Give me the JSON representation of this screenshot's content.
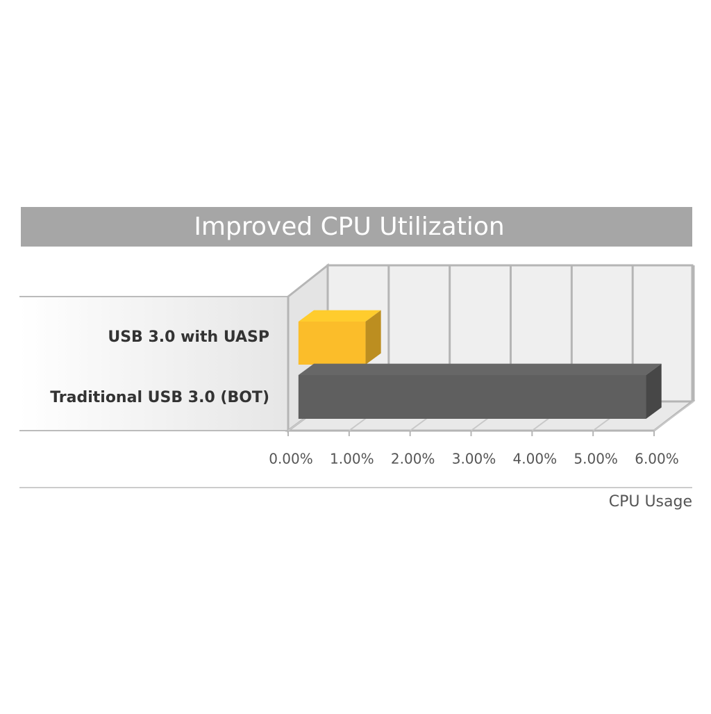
{
  "chart_data": {
    "type": "bar3d",
    "title": "Improved CPU Utilization",
    "categories": [
      "USB 3.0 with UASP",
      "Traditional USB 3.0 (BOT)"
    ],
    "values": [
      1.1,
      5.7
    ],
    "colors": [
      "#fbbd2a",
      "#5f5f5f"
    ],
    "xlabel": "CPU Usage",
    "xlim": [
      0,
      6
    ],
    "xticks": [
      {
        "value": 0,
        "label": "0.00%"
      },
      {
        "value": 1,
        "label": "1.00%"
      },
      {
        "value": 2,
        "label": "2.00%"
      },
      {
        "value": 3,
        "label": "3.00%"
      },
      {
        "value": 4,
        "label": "4.00%"
      },
      {
        "value": 5,
        "label": "5.00%"
      },
      {
        "value": 6,
        "label": "6.00%"
      }
    ],
    "grid": true
  }
}
